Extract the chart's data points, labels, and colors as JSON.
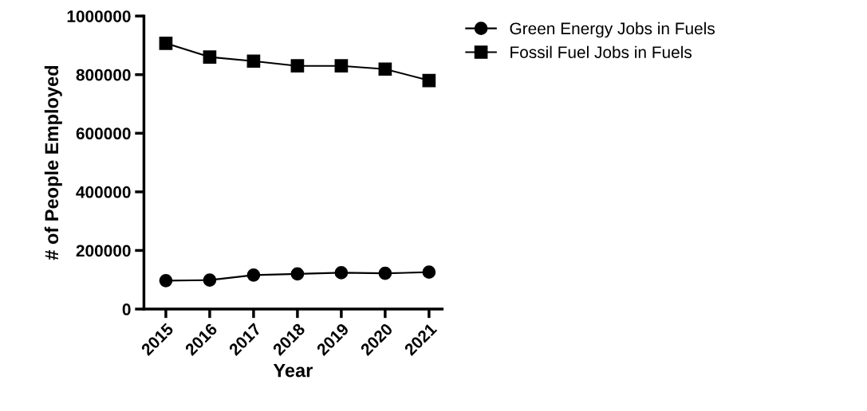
{
  "chart_data": {
    "type": "line",
    "xlabel": "Year",
    "ylabel": "# of People Employed",
    "categories": [
      "2015",
      "2016",
      "2017",
      "2018",
      "2019",
      "2020",
      "2021"
    ],
    "series": [
      {
        "name": "Green Energy Jobs in Fuels",
        "color": "#000000",
        "marker": "circle",
        "values": [
          97000,
          99000,
          116000,
          120000,
          124000,
          122000,
          126000
        ]
      },
      {
        "name": "Fossil Fuel Jobs in Fuels",
        "color": "#000000",
        "marker": "square",
        "values": [
          907000,
          860000,
          846000,
          830000,
          830000,
          819000,
          780000
        ]
      }
    ],
    "ylim": [
      0,
      1000000
    ],
    "yticks": [
      0,
      200000,
      400000,
      600000,
      800000,
      1000000
    ],
    "grid": false,
    "legend": "top right",
    "line_style": "solid"
  }
}
